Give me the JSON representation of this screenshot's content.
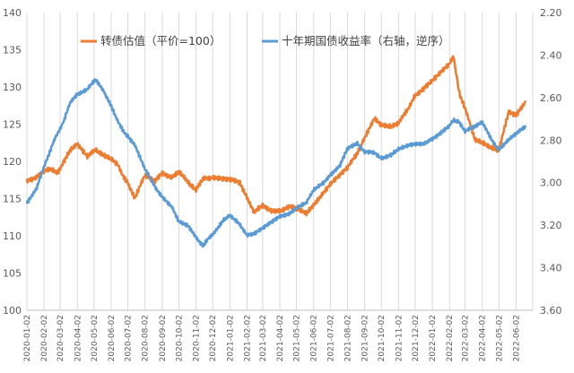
{
  "chart_data": {
    "type": "line",
    "title": "",
    "xlabel": "",
    "ylabel": "",
    "ylim": [
      100,
      140
    ],
    "y2lim": [
      2.2,
      3.6
    ],
    "y2_inverted": true,
    "y_ticks": [
      "100",
      "105",
      "110",
      "115",
      "120",
      "125",
      "130",
      "135",
      "140"
    ],
    "y2_ticks": [
      "2.20",
      "2.40",
      "2.60",
      "2.80",
      "3.00",
      "3.20",
      "3.40",
      "3.60"
    ],
    "x_ticks": [
      "2020-01-02",
      "2020-02-02",
      "2020-03-02",
      "2020-04-02",
      "2020-05-02",
      "2020-06-02",
      "2020-07-02",
      "2020-08-02",
      "2020-09-02",
      "2020-10-02",
      "2020-11-02",
      "2020-12-02",
      "2021-01-02",
      "2021-02-02",
      "2021-03-02",
      "2021-04-02",
      "2021-05-02",
      "2021-06-02",
      "2021-07-02",
      "2021-08-02",
      "2021-09-02",
      "2021-10-02",
      "2021-11-02",
      "2021-12-02",
      "2022-01-02",
      "2022-02-02",
      "2022-03-02",
      "2022-04-02",
      "2022-05-02",
      "2022-06-02"
    ],
    "grid": "vertical",
    "legend_position": "top",
    "x_dates": [
      "2020-01-02",
      "2020-01-20",
      "2020-02-05",
      "2020-02-25",
      "2020-03-10",
      "2020-03-20",
      "2020-04-02",
      "2020-04-20",
      "2020-05-05",
      "2020-05-20",
      "2020-06-02",
      "2020-06-15",
      "2020-07-02",
      "2020-07-15",
      "2020-08-02",
      "2020-08-20",
      "2020-09-02",
      "2020-09-20",
      "2020-10-02",
      "2020-10-20",
      "2020-11-02",
      "2020-11-15",
      "2020-12-02",
      "2020-12-20",
      "2021-01-02",
      "2021-01-20",
      "2021-02-02",
      "2021-02-15",
      "2021-03-02",
      "2021-03-20",
      "2021-04-02",
      "2021-04-20",
      "2021-05-02",
      "2021-05-20",
      "2021-06-02",
      "2021-06-20",
      "2021-07-02",
      "2021-07-20",
      "2021-08-02",
      "2021-08-20",
      "2021-09-02",
      "2021-09-20",
      "2021-10-02",
      "2021-10-20",
      "2021-11-02",
      "2021-11-20",
      "2021-12-02",
      "2021-12-20",
      "2022-01-02",
      "2022-01-20",
      "2022-02-02",
      "2022-02-10",
      "2022-02-20",
      "2022-03-02",
      "2022-03-20",
      "2022-04-02",
      "2022-04-20",
      "2022-05-02",
      "2022-05-20",
      "2022-06-02",
      "2022-06-20"
    ],
    "series": [
      {
        "name": "转债估值（平价=100）",
        "axis": "left",
        "color": "#ED7D31",
        "values": [
          117.5,
          118,
          119,
          118.5,
          120,
          121.5,
          122.5,
          120.5,
          121.5,
          121,
          120.5,
          119.5,
          117,
          115,
          118,
          117.5,
          118.5,
          118,
          118.5,
          117,
          116,
          117.5,
          118,
          117.5,
          117.5,
          117,
          115,
          113,
          114,
          113.5,
          113.5,
          114,
          113.5,
          113,
          114,
          116,
          117,
          118,
          119,
          121,
          123,
          126,
          125,
          124.5,
          125,
          127,
          129,
          130,
          131,
          132,
          133,
          134,
          129,
          127,
          123,
          122.5,
          122,
          121.5,
          126.5,
          126,
          128
        ]
      },
      {
        "name": "十年期国债收益率（右轴，逆序）",
        "axis": "right",
        "color": "#5B9BD5",
        "values": [
          3.1,
          3.02,
          2.9,
          2.78,
          2.7,
          2.62,
          2.58,
          2.56,
          2.52,
          2.57,
          2.64,
          2.72,
          2.78,
          2.82,
          2.94,
          3.02,
          3.07,
          3.11,
          3.18,
          3.21,
          3.26,
          3.3,
          3.24,
          3.18,
          3.15,
          3.2,
          3.25,
          3.24,
          3.22,
          3.18,
          3.16,
          3.14,
          3.12,
          3.1,
          3.04,
          3.0,
          2.96,
          2.92,
          2.84,
          2.82,
          2.86,
          2.86,
          2.88,
          2.87,
          2.84,
          2.83,
          2.82,
          2.81,
          2.79,
          2.76,
          2.73,
          2.71,
          2.72,
          2.76,
          2.74,
          2.72,
          2.8,
          2.84,
          2.8,
          2.77,
          2.74
        ]
      }
    ]
  }
}
